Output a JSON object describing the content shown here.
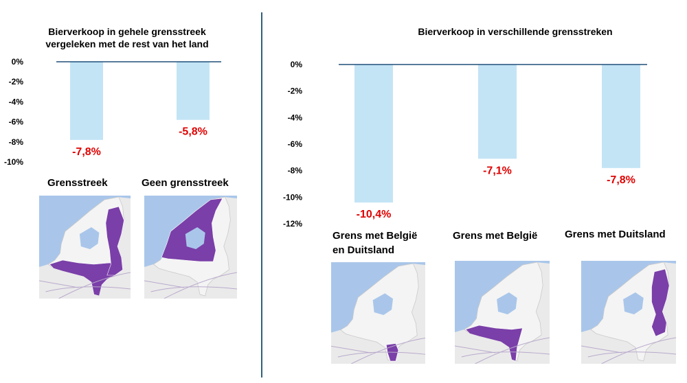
{
  "colors": {
    "bar": "#c3e4f5",
    "baseline": "#1f4e79",
    "label": "#e00000",
    "province": "#7a3fa8",
    "sea": "#a9c6ea",
    "land": "#f4f4f4",
    "divider": "#2f5f7a"
  },
  "chart_data": [
    {
      "type": "bar",
      "title": "Bierverkoop in gehele grensstreek vergeleken met de  rest van het land",
      "categories": [
        "Grensstreek",
        "Geen grensstreek"
      ],
      "values": [
        -7.8,
        -5.8
      ],
      "value_labels": [
        "-7,8%",
        "-5,8%"
      ],
      "yticks": [
        "0%",
        "-2%",
        "-4%",
        "-6%",
        "-8%",
        "-10%"
      ],
      "ylim": [
        -10,
        0
      ],
      "xlabel": "",
      "ylabel": "",
      "grid": false
    },
    {
      "type": "bar",
      "title": "Bierverkoop in verschillende grensstreken",
      "categories": [
        "Grens met België en Duitsland",
        "Grens met België",
        "Grens met Duitsland"
      ],
      "values": [
        -10.4,
        -7.1,
        -7.8
      ],
      "value_labels": [
        "-10,4%",
        "-7,1%",
        "-7,8%"
      ],
      "yticks": [
        "0%",
        "-2%",
        "-4%",
        "-6%",
        "-8%",
        "-10%",
        "-12%"
      ],
      "ylim": [
        -12,
        0
      ],
      "xlabel": "",
      "ylabel": "",
      "grid": false
    }
  ],
  "maps": [
    {
      "label": "Grensstreek",
      "icon": "netherlands-map-border-regions-icon"
    },
    {
      "label": "Geen grensstreek",
      "icon": "netherlands-map-non-border-regions-icon"
    },
    {
      "label_line1": "Grens met België",
      "label_line2": "en Duitsland",
      "icon": "netherlands-map-belgium-germany-border-icon"
    },
    {
      "label": "Grens met België",
      "icon": "netherlands-map-belgium-border-icon"
    },
    {
      "label": "Grens met Duitsland",
      "icon": "netherlands-map-germany-border-icon"
    }
  ]
}
